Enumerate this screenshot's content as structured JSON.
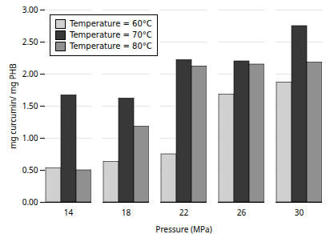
{
  "chart_data": {
    "type": "bar",
    "categories": [
      "14",
      "18",
      "22",
      "26",
      "30"
    ],
    "series": [
      {
        "name": "Temperature = 60°C",
        "color": "#d0d0d0",
        "values": [
          0.53,
          0.63,
          0.75,
          1.68,
          1.87
        ]
      },
      {
        "name": "Temperature = 70°C",
        "color": "#383838",
        "values": [
          1.67,
          1.62,
          2.22,
          2.2,
          2.75
        ]
      },
      {
        "name": "Temperature = 80°C",
        "color": "#909090",
        "values": [
          0.5,
          1.18,
          2.12,
          2.15,
          2.18
        ]
      }
    ],
    "xlabel": "Pressure (MPa)",
    "ylabel": "mg curcumin/ mg PHB",
    "ylim": [
      0.0,
      3.0
    ],
    "yticks": [
      {
        "value": 0.0,
        "label": "0.00"
      },
      {
        "value": 0.5,
        "label": "0.50"
      },
      {
        "value": 1.0,
        "label": "1.00"
      },
      {
        "value": 1.5,
        "label": "1.50"
      },
      {
        "value": 2.0,
        "label": "2.00"
      },
      {
        "value": 2.5,
        "label": "2.50"
      },
      {
        "value": 3.0,
        "label": "3.00"
      }
    ],
    "grid": true,
    "legend": "upper left"
  }
}
